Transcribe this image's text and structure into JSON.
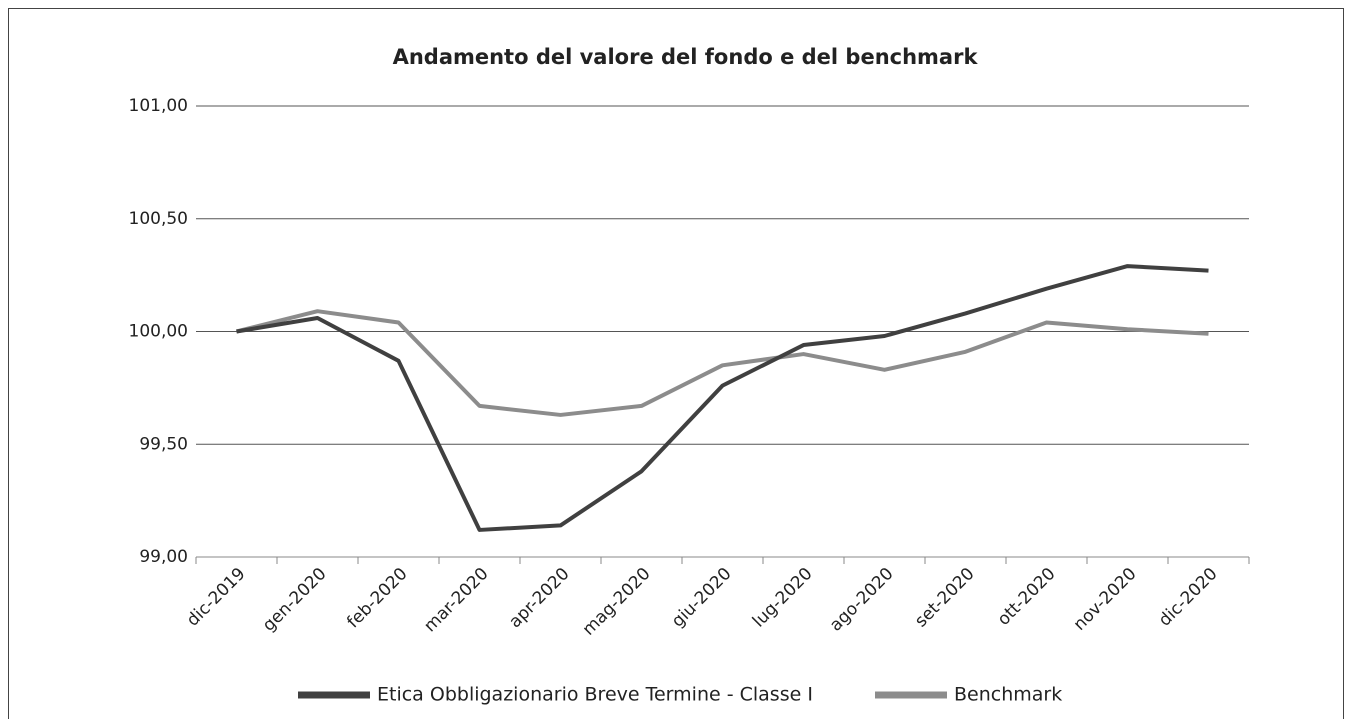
{
  "chart_data": {
    "type": "line",
    "title": "Andamento del valore del fondo e del benchmark",
    "categories": [
      "dic-2019",
      "gen-2020",
      "feb-2020",
      "mar-2020",
      "apr-2020",
      "mag-2020",
      "giu-2020",
      "lug-2020",
      "ago-2020",
      "set-2020",
      "ott-2020",
      "nov-2020",
      "dic-2020"
    ],
    "series": [
      {
        "name": "Etica Obbligazionario Breve Termine - Classe I",
        "color": "#404040",
        "values": [
          100.0,
          100.06,
          99.87,
          99.12,
          99.14,
          99.38,
          99.76,
          99.94,
          99.98,
          100.08,
          100.19,
          100.29,
          100.27
        ]
      },
      {
        "name": "Benchmark",
        "color": "#8c8c8c",
        "values": [
          100.0,
          100.09,
          100.04,
          99.67,
          99.63,
          99.67,
          99.85,
          99.9,
          99.83,
          99.91,
          100.04,
          100.01,
          99.99
        ]
      }
    ],
    "ylim": [
      99,
      101
    ],
    "yticks": [
      {
        "value": 99,
        "label": "99,00"
      },
      {
        "value": 99.5,
        "label": "99,50"
      },
      {
        "value": 100,
        "label": "100,00"
      },
      {
        "value": 100.5,
        "label": "100,50"
      },
      {
        "value": 101,
        "label": "101,00"
      }
    ],
    "grid": true,
    "legend": "bottom"
  }
}
